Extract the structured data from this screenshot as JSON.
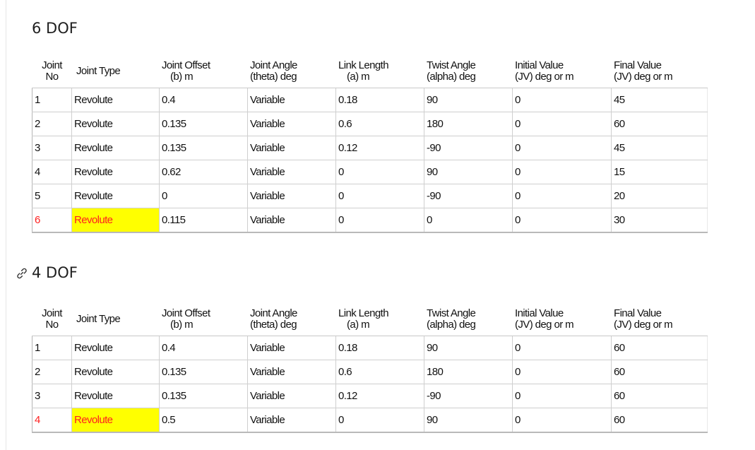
{
  "headings": {
    "six_dof": "6 DOF",
    "four_dof": "4 DOF"
  },
  "table_header": {
    "joint_no": [
      "Joint",
      "No"
    ],
    "joint_type": "Joint Type",
    "joint_offset": [
      "Joint Offset",
      "(b) m"
    ],
    "joint_angle": [
      "Joint Angle",
      "(theta) deg"
    ],
    "link_length": [
      "Link Length",
      "(a) m"
    ],
    "twist_angle": [
      "Twist Angle",
      "(alpha) deg"
    ],
    "initial_value": [
      "Initial Value",
      "(JV)  deg or m"
    ],
    "final_value": [
      "Final Value",
      "(JV)  deg or m"
    ]
  },
  "table_6dof": {
    "rows": [
      {
        "no": "1",
        "type": "Revolute",
        "offset": "0.4",
        "angle": "Variable",
        "length": "0.18",
        "twist": "90",
        "initial": "0",
        "final": "45"
      },
      {
        "no": "2",
        "type": "Revolute",
        "offset": "0.135",
        "angle": "Variable",
        "length": "0.6",
        "twist": "180",
        "initial": "0",
        "final": "60"
      },
      {
        "no": "3",
        "type": "Revolute",
        "offset": "0.135",
        "angle": "Variable",
        "length": "0.12",
        "twist": "-90",
        "initial": "0",
        "final": "45"
      },
      {
        "no": "4",
        "type": "Revolute",
        "offset": "0.62",
        "angle": "Variable",
        "length": "0",
        "twist": "90",
        "initial": "0",
        "final": "15"
      },
      {
        "no": "5",
        "type": "Revolute",
        "offset": "0",
        "angle": "Variable",
        "length": "0",
        "twist": "-90",
        "initial": "0",
        "final": "20"
      },
      {
        "no": "6",
        "type": "Revolute",
        "offset": "0.115",
        "angle": "Variable",
        "length": "0",
        "twist": "0",
        "initial": "0",
        "final": "30",
        "selected": true
      }
    ]
  },
  "table_4dof": {
    "rows": [
      {
        "no": "1",
        "type": "Revolute",
        "offset": "0.4",
        "angle": "Variable",
        "length": "0.18",
        "twist": "90",
        "initial": "0",
        "final": "60"
      },
      {
        "no": "2",
        "type": "Revolute",
        "offset": "0.135",
        "angle": "Variable",
        "length": "0.6",
        "twist": "180",
        "initial": "0",
        "final": "60"
      },
      {
        "no": "3",
        "type": "Revolute",
        "offset": "0.135",
        "angle": "Variable",
        "length": "0.12",
        "twist": "-90",
        "initial": "0",
        "final": "60"
      },
      {
        "no": "4",
        "type": "Revolute",
        "offset": "0.5",
        "angle": "Variable",
        "length": "0",
        "twist": "90",
        "initial": "0",
        "final": "60",
        "selected": true
      }
    ]
  },
  "colors": {
    "selected_text": "#ff2020",
    "selected_fill": "#ffff00",
    "grid_line": "#cfcfcf"
  },
  "icons": {
    "anchor": "link-icon"
  }
}
